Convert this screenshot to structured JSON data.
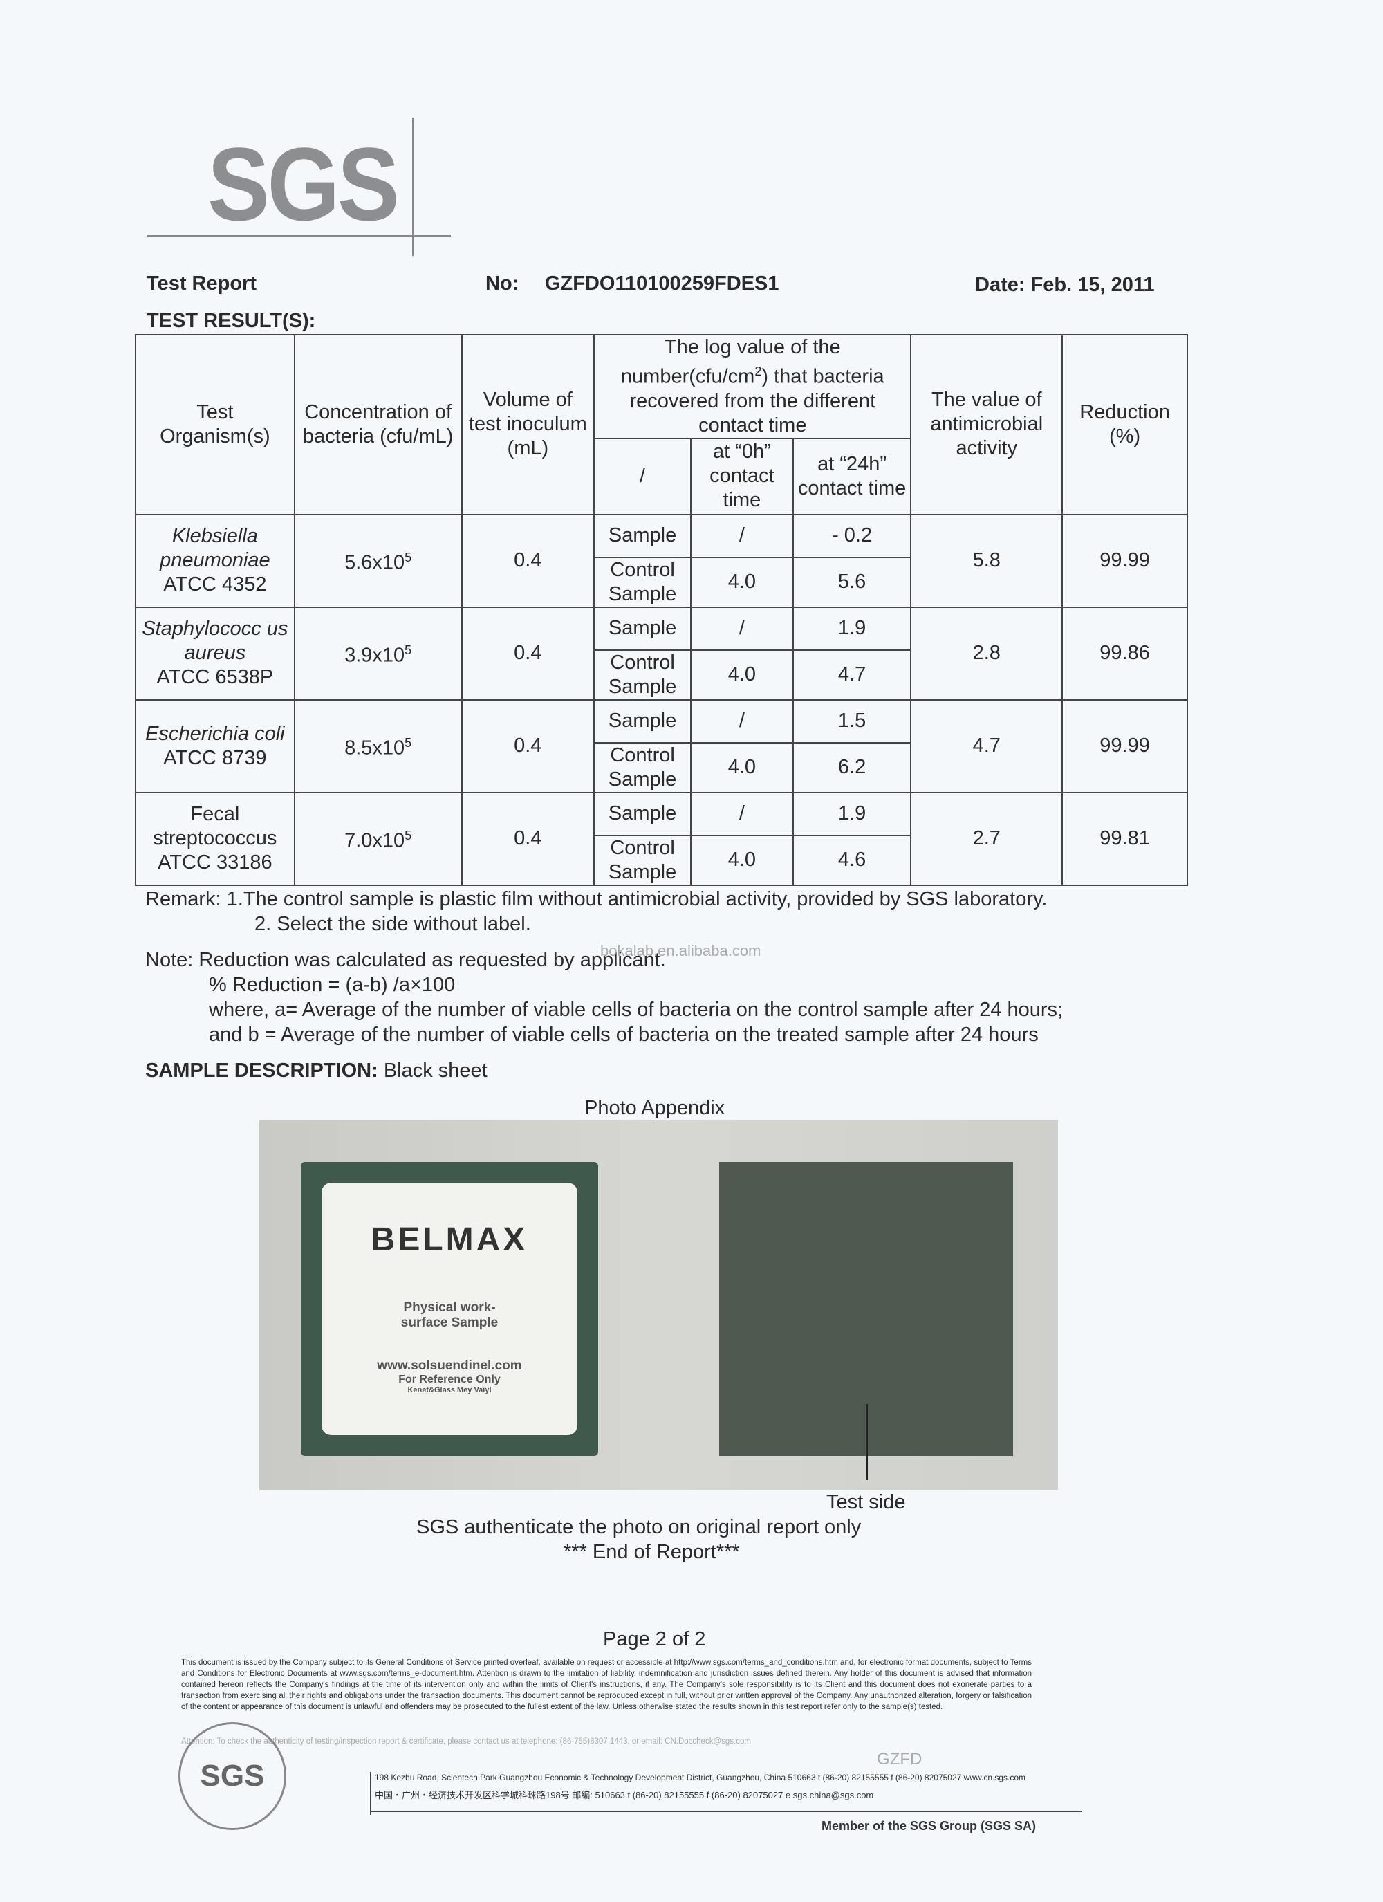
{
  "logo": "SGS",
  "header": {
    "title": "Test Report",
    "no_label": "No:",
    "no_value": "GZFDO110100259FDES1",
    "date": "Date: Feb. 15, 2011"
  },
  "section_title": "TEST RESULT(S):",
  "table": {
    "headers": {
      "organism": "Test Organism(s)",
      "concentration": "Concentration of bacteria (cfu/mL)",
      "volume": "Volume of test inoculum (mL)",
      "log_value": "The log value of the number(cfu/cm",
      "log_sup": "2",
      "log_value_rest": ") that bacteria recovered from the different contact time",
      "slash": "/",
      "h0": "at “0h” contact time",
      "h24": "at “24h” contact time",
      "antimicrobial": "The value of antimicrobial activity",
      "reduction": "Reduction (%)"
    },
    "rows": [
      {
        "organism_italic": "Klebsiella pneumoniae",
        "strain": "ATCC 4352",
        "conc": "5.6x10",
        "exp": "5",
        "volume": "0.4",
        "sample": "Sample",
        "sample_0h": "/",
        "sample_24h": "- 0.2",
        "control": "Control Sample",
        "control_0h": "4.0",
        "control_24h": "5.6",
        "activity": "5.8",
        "reduction": "99.99"
      },
      {
        "organism_italic": "Staphylococc us aureus",
        "strain": "ATCC 6538P",
        "conc": "3.9x10",
        "exp": "5",
        "volume": "0.4",
        "sample": "Sample",
        "sample_0h": "/",
        "sample_24h": "1.9",
        "control": "Control Sample",
        "control_0h": "4.0",
        "control_24h": "4.7",
        "activity": "2.8",
        "reduction": "99.86"
      },
      {
        "organism_italic": "Escherichia coli",
        "strain": "ATCC 8739",
        "conc": "8.5x10",
        "exp": "5",
        "volume": "0.4",
        "sample": "Sample",
        "sample_0h": "/",
        "sample_24h": "1.5",
        "control": "Control Sample",
        "control_0h": "4.0",
        "control_24h": "6.2",
        "activity": "4.7",
        "reduction": "99.99"
      },
      {
        "organism_italic": "",
        "organism_plain": "Fecal streptococcus",
        "strain": "ATCC 33186",
        "conc": "7.0x10",
        "exp": "5",
        "volume": "0.4",
        "sample": "Sample",
        "sample_0h": "/",
        "sample_24h": "1.9",
        "control": "Control Sample",
        "control_0h": "4.0",
        "control_24h": "4.6",
        "activity": "2.7",
        "reduction": "99.81"
      }
    ]
  },
  "remarks": [
    "Remark: 1.The control sample is plastic film without antimicrobial activity, provided by SGS laboratory.",
    "2. Select the side without label."
  ],
  "note": [
    "Note: Reduction was calculated as requested by applicant.",
    "% Reduction = (a-b) /a×100",
    "where, a= Average of the number of viable cells of bacteria on the control sample after 24 hours;",
    "and b = Average of the number of viable cells of bacteria on the treated sample after 24 hours"
  ],
  "watermark": "bokalab.en.alibaba.com",
  "sample_description": {
    "label": "SAMPLE DESCRIPTION:",
    "value": "Black sheet"
  },
  "photo": {
    "title": "Photo Appendix",
    "brand": "BELMAX",
    "label_lines": [
      "Physical work-",
      "surface Sample",
      "www.solsuendinel.com",
      "For Reference Only",
      "Kenet&Glass Mey Vaiyl"
    ],
    "test_side": "Test side",
    "caption": "SGS authenticate the photo on original report only",
    "end": "*** End of Report***"
  },
  "footer": {
    "page": "Page 2 of 2",
    "disclaimer": "This document is issued by the Company subject to its General Conditions of Service printed overleaf, available on request or accessible at http://www.sgs.com/terms_and_conditions.htm and, for electronic format documents, subject to Terms and Conditions for Electronic Documents at www.sgs.com/terms_e-document.htm. Attention is drawn to the limitation of liability, indemnification and jurisdiction issues defined therein. Any holder of this document is advised that information contained hereon reflects the Company's findings at the time of its intervention only and within the limits of Client's instructions, if any. The Company's sole responsibility is to its Client and this document does not exonerate parties to a transaction from exercising all their rights and obligations under the transaction documents. This document cannot be reproduced except in full, without prior written approval of the Company. Any unauthorized alteration, forgery or falsification of the content or appearance of this document is unlawful and offenders may be prosecuted to the fullest extent of the law. Unless otherwise stated the results shown in this test report refer only to the sample(s) tested.",
    "attention": "Attention: To check the authenticity of testing/inspection report & certificate, please contact us at telephone: (86-755)8307 1443, or email: CN.Doccheck@sgs.com",
    "gzfd": "GZFD",
    "address_en": "198 Kezhu Road, Scientech Park Guangzhou Economic & Technology Development District, Guangzhou, China 510663 t (86-20) 82155555 f (86-20) 82075027 www.cn.sgs.com",
    "address_cn": "中国・广州・经济技术开发区科学城科珠路198号 邮编: 510663 t (86-20) 82155555 f (86-20) 82075027 e sgs.china@sgs.com",
    "member": "Member of the SGS Group (SGS SA)",
    "stamp": "SGS"
  }
}
